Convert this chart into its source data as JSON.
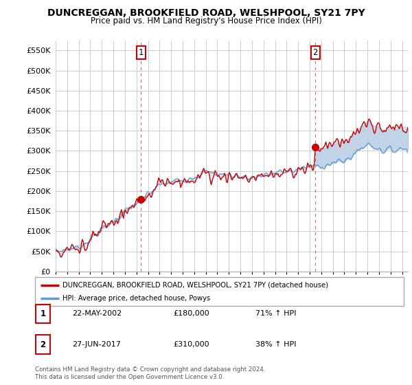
{
  "title": "DUNCREGGAN, BROOKFIELD ROAD, WELSHPOOL, SY21 7PY",
  "subtitle": "Price paid vs. HM Land Registry's House Price Index (HPI)",
  "legend_line1": "DUNCREGGAN, BROOKFIELD ROAD, WELSHPOOL, SY21 7PY (detached house)",
  "legend_line2": "HPI: Average price, detached house, Powys",
  "annotation1_label": "1",
  "annotation1_date": "22-MAY-2002",
  "annotation1_price": "£180,000",
  "annotation1_hpi": "71% ↑ HPI",
  "annotation2_label": "2",
  "annotation2_date": "27-JUN-2017",
  "annotation2_price": "£310,000",
  "annotation2_hpi": "38% ↑ HPI",
  "footer1": "Contains HM Land Registry data © Crown copyright and database right 2024.",
  "footer2": "This data is licensed under the Open Government Licence v3.0.",
  "house_color": "#cc0000",
  "hpi_color": "#6699cc",
  "fill_color": "#ddeeff",
  "ylim": [
    0,
    575000
  ],
  "xlim_start": 1995.0,
  "xlim_end": 2025.5,
  "sale1_x": 2002.39,
  "sale1_y": 180000,
  "sale2_x": 2017.49,
  "sale2_y": 310000,
  "background_color": "#ffffff",
  "grid_color": "#cccccc"
}
